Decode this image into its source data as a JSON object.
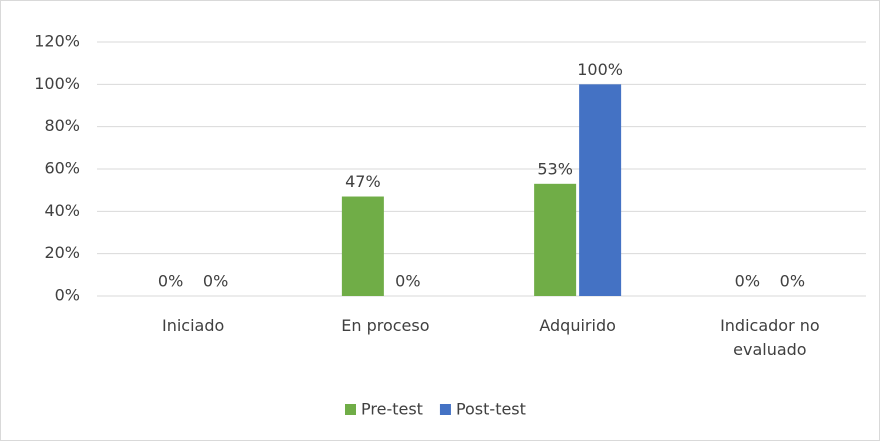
{
  "chart_data": {
    "type": "bar",
    "categories": [
      "Iniciado",
      "En proceso",
      "Adquirido",
      "Indicador no evaluado"
    ],
    "series": [
      {
        "name": "Pre-test",
        "color": "#70ad47",
        "values": [
          0,
          47,
          53,
          0
        ],
        "value_labels": [
          "0%",
          "47%",
          "53%",
          "0%"
        ]
      },
      {
        "name": "Post-test",
        "color": "#4472c4",
        "values": [
          0,
          0,
          100,
          0
        ],
        "value_labels": [
          "0%",
          "0%",
          "100%",
          "0%"
        ]
      }
    ],
    "ylim": [
      0,
      120
    ],
    "yticks": [
      {
        "value": 0,
        "label": "0%"
      },
      {
        "value": 20,
        "label": "20%"
      },
      {
        "value": 40,
        "label": "40%"
      },
      {
        "value": 60,
        "label": "60%"
      },
      {
        "value": 80,
        "label": "80%"
      },
      {
        "value": 100,
        "label": "100%"
      },
      {
        "value": 120,
        "label": "120%"
      }
    ],
    "grid": true,
    "legend": "bottom"
  }
}
